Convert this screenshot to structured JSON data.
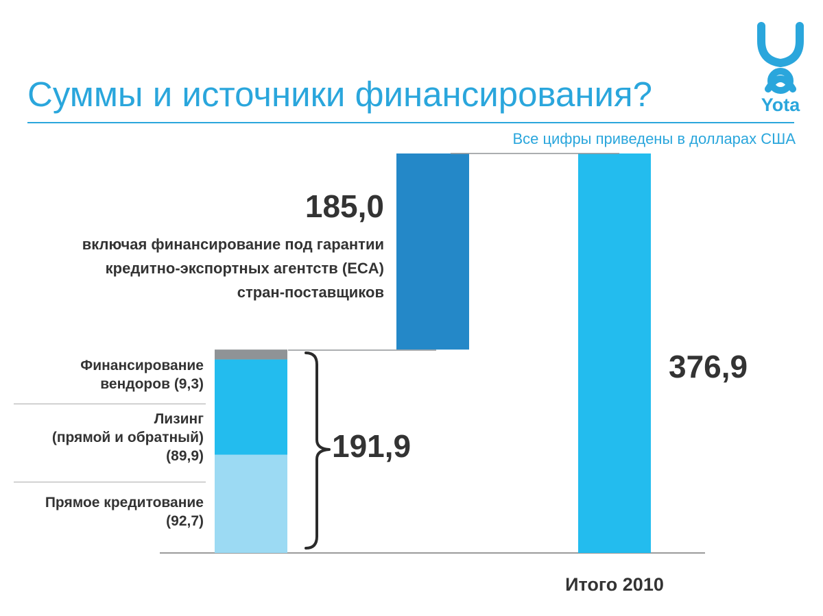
{
  "title": "Суммы и источники финансирования?",
  "subtitle": "Все цифры приведены в долларах США",
  "logo": {
    "text": "Yota",
    "icon": "yota-person-icon",
    "color": "#2aa6dc"
  },
  "chart_data": {
    "type": "bar",
    "subtype": "waterfall-stacked",
    "unit": "USD",
    "ylim": [
      0,
      376.9
    ],
    "grid": false,
    "categories": [
      "",
      "",
      "Итого 2010"
    ],
    "bars": [
      {
        "category_index": 0,
        "stack": [
          {
            "name": "Прямое кредитование",
            "value": 92.7,
            "color": "#9cdaf3"
          },
          {
            "name": "Лизинг (прямой и обратный)",
            "value": 89.9,
            "color": "#23bcee"
          },
          {
            "name": "Финансирование вендоров",
            "value": 9.3,
            "color": "#8f9396"
          }
        ],
        "total": 191.9,
        "total_label": "191,9"
      },
      {
        "category_index": 1,
        "base": 191.9,
        "value": 185.0,
        "color": "#2488c8",
        "label": "185,0",
        "note_lines": [
          "включая финансирование под гарантии",
          "кредитно-экспортных агентств (ECA)",
          "стран-поставщиков"
        ]
      },
      {
        "category_index": 2,
        "value": 376.9,
        "color": "#23bcee",
        "label": "376,9"
      }
    ],
    "segment_labels": [
      {
        "lines": [
          "Финансирование",
          "вендоров (9,3)"
        ]
      },
      {
        "lines": [
          "Лизинг",
          "(прямой и обратный)",
          "(89,9)"
        ]
      },
      {
        "lines": [
          "Прямое  кредитование",
          "(92,7)"
        ]
      }
    ],
    "connector_color": "#8f9396",
    "axis_color": "#9a9a9a"
  }
}
